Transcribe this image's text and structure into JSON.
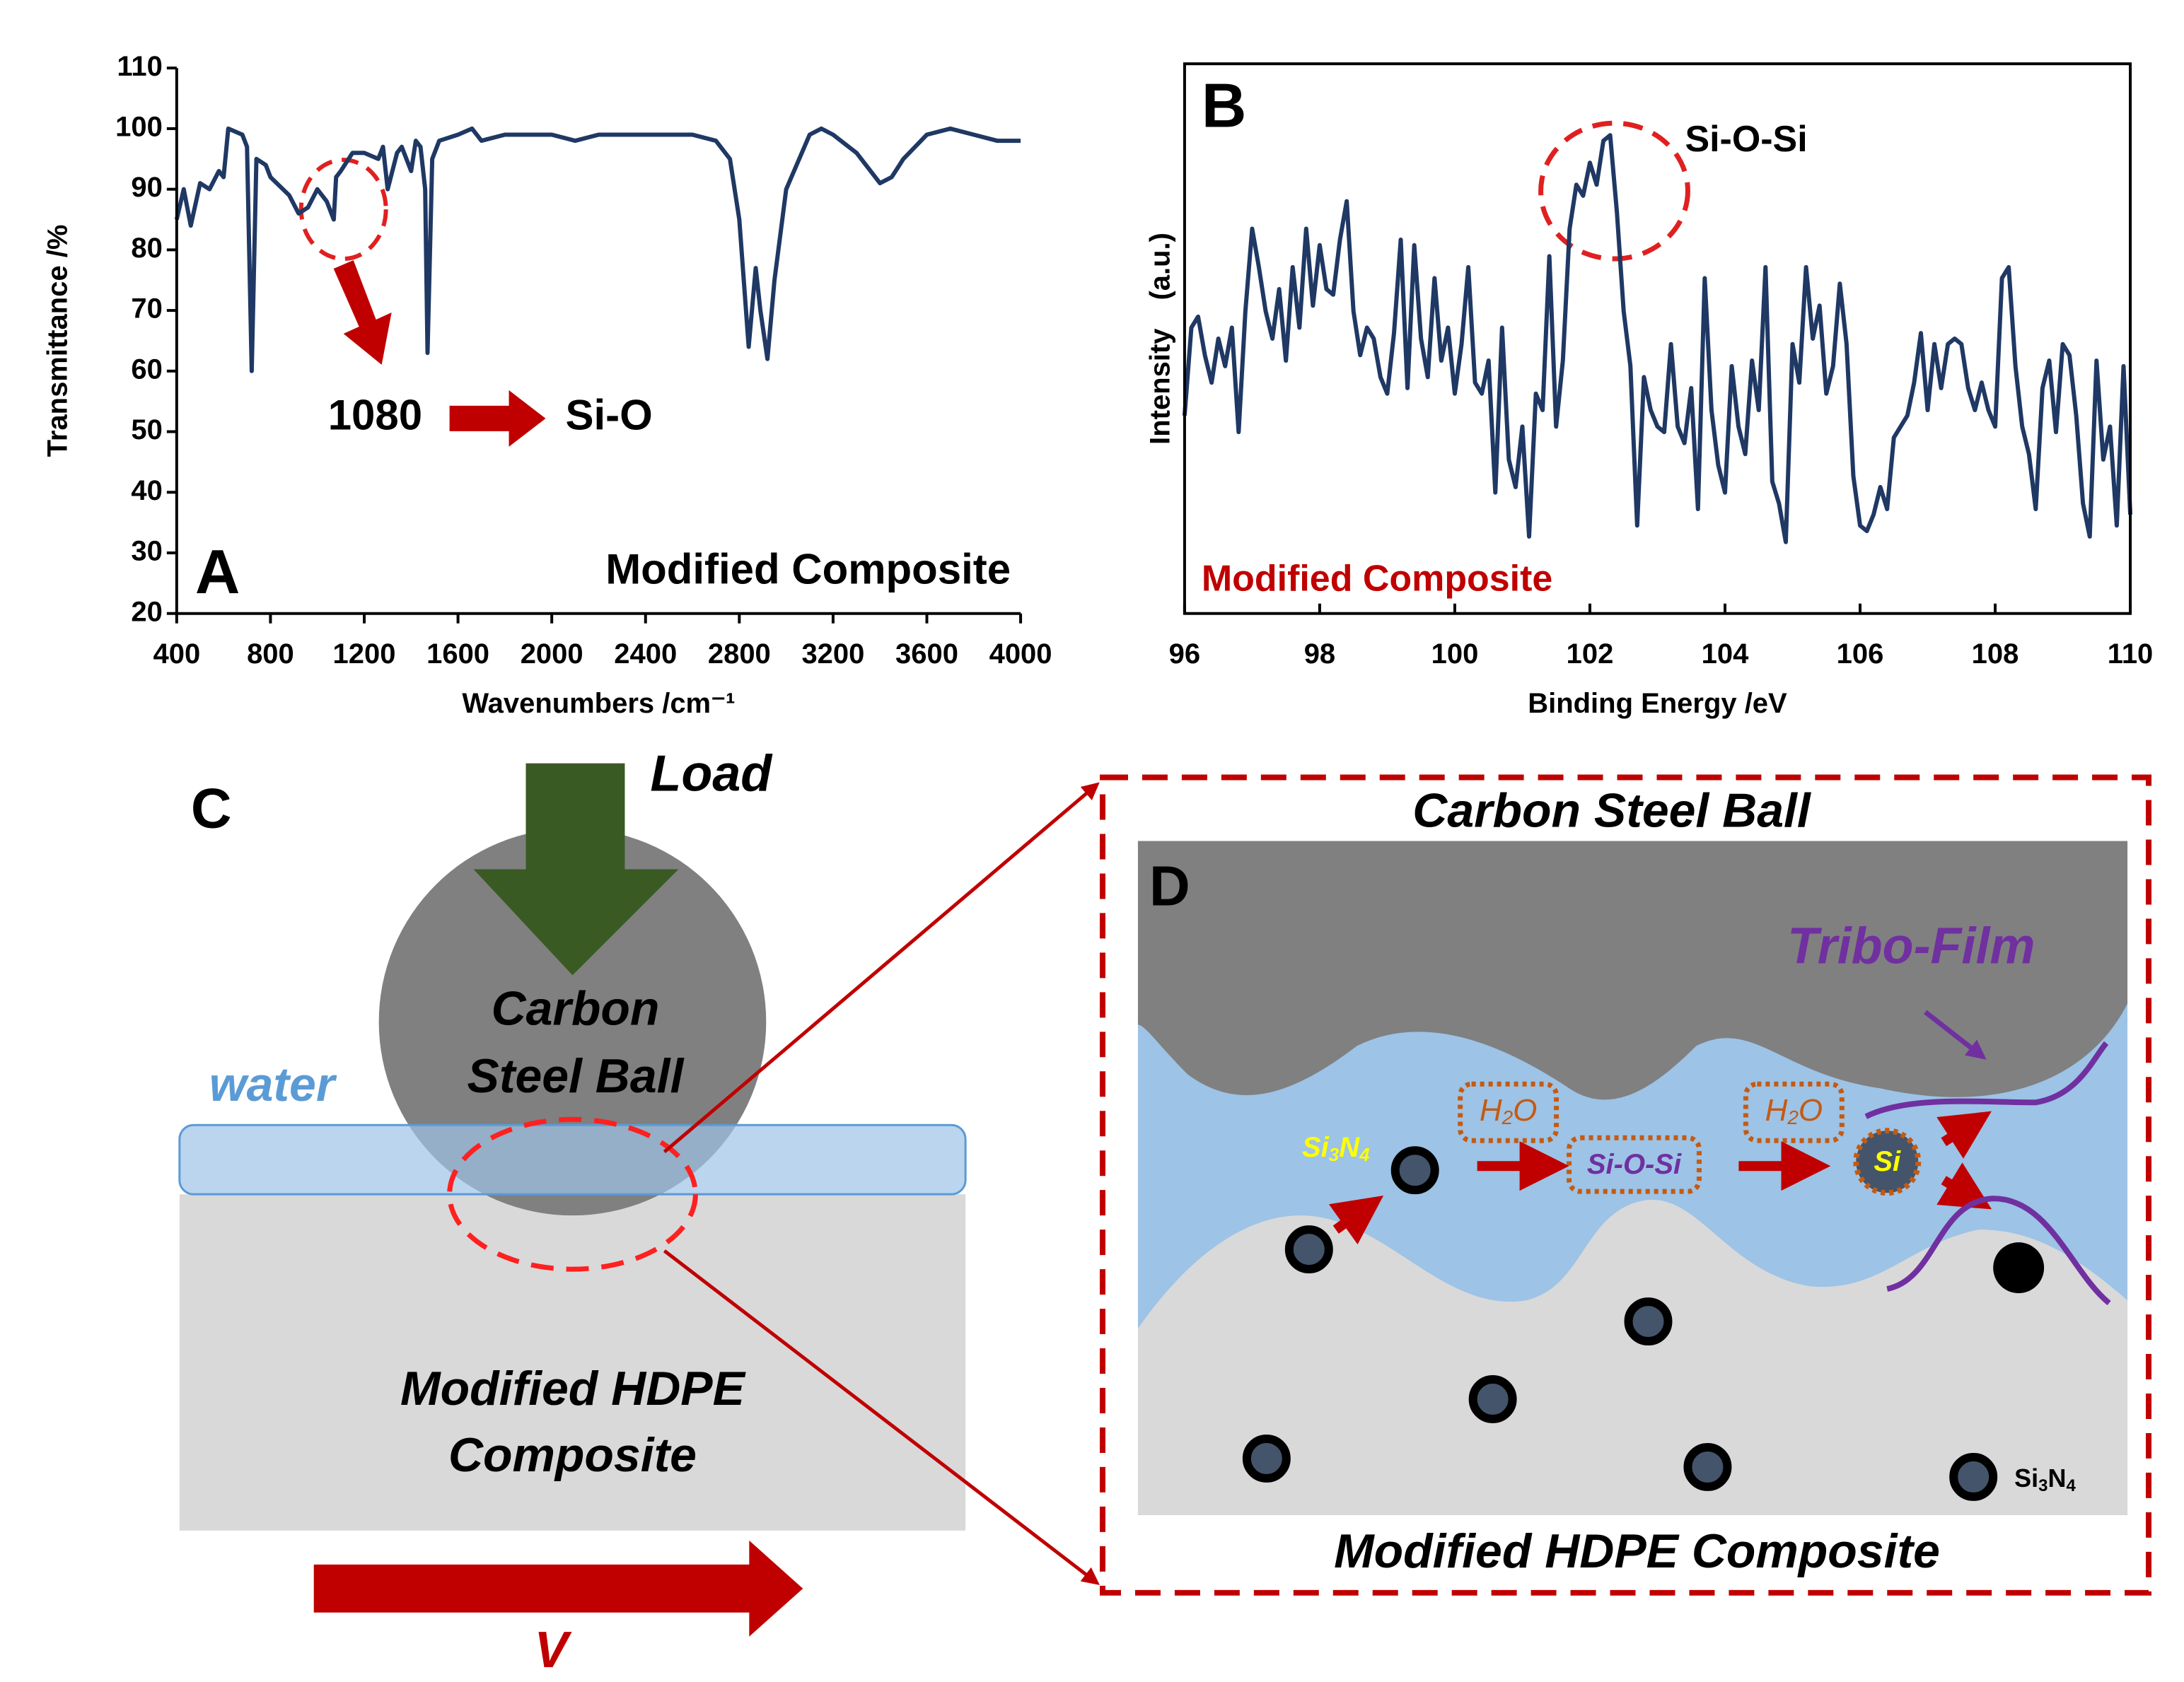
{
  "chart_data": [
    {
      "type": "line",
      "panel_label": "A",
      "label": "Modified Composite",
      "annotations": [
        "1080",
        "Si-O"
      ],
      "xlabel": "Wavenumbers /cm⁻¹",
      "ylabel": "Transmittance /%",
      "xlim": [
        400,
        4000
      ],
      "xticks": [
        400,
        800,
        1200,
        1600,
        2000,
        2400,
        2800,
        3200,
        3600,
        4000
      ],
      "ylim": [
        20,
        110
      ],
      "yticks": [
        20,
        30,
        40,
        50,
        60,
        70,
        80,
        90,
        100,
        110
      ],
      "x": [
        400,
        430,
        460,
        500,
        540,
        580,
        600,
        620,
        680,
        700,
        720,
        740,
        780,
        800,
        880,
        920,
        960,
        1000,
        1040,
        1070,
        1080,
        1100,
        1150,
        1200,
        1260,
        1280,
        1300,
        1340,
        1360,
        1400,
        1420,
        1440,
        1460,
        1470,
        1490,
        1520,
        1600,
        1660,
        1700,
        1800,
        1900,
        2000,
        2100,
        2200,
        2400,
        2600,
        2700,
        2760,
        2800,
        2840,
        2870,
        2890,
        2920,
        2950,
        3000,
        3100,
        3150,
        3200,
        3300,
        3400,
        3450,
        3500,
        3600,
        3700,
        3800,
        3900,
        4000
      ],
      "series": [
        {
          "color": "#1f3864",
          "values": [
            85,
            90,
            84,
            91,
            90,
            93,
            92,
            100,
            99,
            97,
            60,
            95,
            94,
            92,
            89,
            86,
            87,
            90,
            88,
            85,
            92,
            93,
            96,
            96,
            95,
            97,
            90,
            96,
            97,
            93,
            98,
            97,
            90,
            63,
            95,
            98,
            99,
            100,
            98,
            99,
            99,
            99,
            98,
            99,
            99,
            99,
            98,
            95,
            85,
            64,
            77,
            70,
            62,
            75,
            90,
            99,
            100,
            99,
            96,
            91,
            92,
            95,
            99,
            100,
            99,
            98,
            98
          ]
        }
      ]
    },
    {
      "type": "line",
      "panel_label": "B",
      "label": "Modified Composite",
      "annotations": [
        "Si-O-Si"
      ],
      "xlabel": "Binding Energy /eV",
      "ylabel": "Intensity　(a.u.)",
      "xlim": [
        96,
        110
      ],
      "xticks": [
        96,
        98,
        100,
        102,
        104,
        106,
        108,
        110
      ],
      "ylim": [
        0,
        100
      ],
      "x": [
        96,
        96.1,
        96.2,
        96.3,
        96.4,
        96.5,
        96.6,
        96.7,
        96.8,
        96.9,
        97,
        97.1,
        97.2,
        97.3,
        97.4,
        97.5,
        97.6,
        97.7,
        97.8,
        97.9,
        98,
        98.1,
        98.2,
        98.3,
        98.4,
        98.5,
        98.6,
        98.7,
        98.8,
        98.9,
        99,
        99.1,
        99.2,
        99.3,
        99.4,
        99.5,
        99.6,
        99.7,
        99.8,
        99.9,
        100,
        100.1,
        100.2,
        100.3,
        100.4,
        100.5,
        100.6,
        100.7,
        100.8,
        100.9,
        101,
        101.1,
        101.2,
        101.3,
        101.4,
        101.5,
        101.6,
        101.7,
        101.8,
        101.9,
        102,
        102.1,
        102.2,
        102.3,
        102.4,
        102.5,
        102.6,
        102.7,
        102.8,
        102.9,
        103,
        103.1,
        103.2,
        103.3,
        103.4,
        103.5,
        103.6,
        103.7,
        103.8,
        103.9,
        104,
        104.1,
        104.2,
        104.3,
        104.4,
        104.5,
        104.6,
        104.7,
        104.8,
        104.9,
        105,
        105.1,
        105.2,
        105.3,
        105.4,
        105.5,
        105.6,
        105.7,
        105.8,
        105.9,
        106,
        106.1,
        106.2,
        106.3,
        106.4,
        106.5,
        106.6,
        106.7,
        106.8,
        106.9,
        107,
        107.1,
        107.2,
        107.3,
        107.4,
        107.5,
        107.6,
        107.7,
        107.8,
        107.9,
        108,
        108.1,
        108.2,
        108.3,
        108.4,
        108.5,
        108.6,
        108.7,
        108.8,
        108.9,
        109,
        109.1,
        109.2,
        109.3,
        109.4,
        109.5,
        109.6,
        109.7,
        109.8,
        109.9,
        110
      ],
      "series": [
        {
          "color": "#1f3864",
          "values": [
            36,
            52,
            54,
            47,
            42,
            50,
            45,
            52,
            33,
            55,
            70,
            63,
            55,
            50,
            59,
            46,
            63,
            52,
            70,
            56,
            67,
            59,
            58,
            68,
            75,
            55,
            47,
            52,
            50,
            43,
            40,
            51,
            68,
            41,
            67,
            50,
            43,
            61,
            46,
            52,
            40,
            49,
            63,
            42,
            40,
            46,
            22,
            52,
            28,
            23,
            34,
            14,
            40,
            37,
            65,
            34,
            46,
            70,
            78,
            76,
            82,
            78,
            86,
            87,
            73,
            55,
            45,
            16,
            43,
            37,
            34,
            33,
            49,
            34,
            31,
            41,
            19,
            61,
            37,
            27,
            22,
            45,
            34,
            29,
            46,
            37,
            63,
            24,
            20,
            13,
            49,
            42,
            63,
            50,
            56,
            40,
            45,
            60,
            49,
            25,
            16,
            15,
            18,
            23,
            19,
            32,
            34,
            36,
            42,
            51,
            37,
            49,
            41,
            49,
            50,
            49,
            41,
            37,
            42,
            37,
            34,
            61,
            63,
            45,
            34,
            29,
            19,
            41,
            46,
            33,
            49,
            47,
            36,
            20,
            14,
            46,
            28,
            34,
            16,
            45,
            18
          ]
        }
      ]
    }
  ],
  "diagrams": {
    "C": {
      "panel_label": "C",
      "load": "Load",
      "ball": [
        "Carbon",
        "Steel Ball"
      ],
      "water": "water",
      "composite": [
        "Modified HDPE",
        "Composite"
      ],
      "velocity": "V"
    },
    "D": {
      "panel_label": "D",
      "top": "Carbon Steel Ball",
      "bottom": "Modified HDPE Composite",
      "tribo_film": "Tribo-Film",
      "si3n4": [
        "Si",
        "3",
        "N",
        "4"
      ],
      "h2o": [
        "H",
        "2",
        "O"
      ],
      "h2o_2": [
        "H",
        "2",
        "O"
      ],
      "siosi": "Si-O-Si",
      "si": "Si",
      "legend": [
        "Si",
        "3",
        "N",
        "4"
      ]
    }
  }
}
